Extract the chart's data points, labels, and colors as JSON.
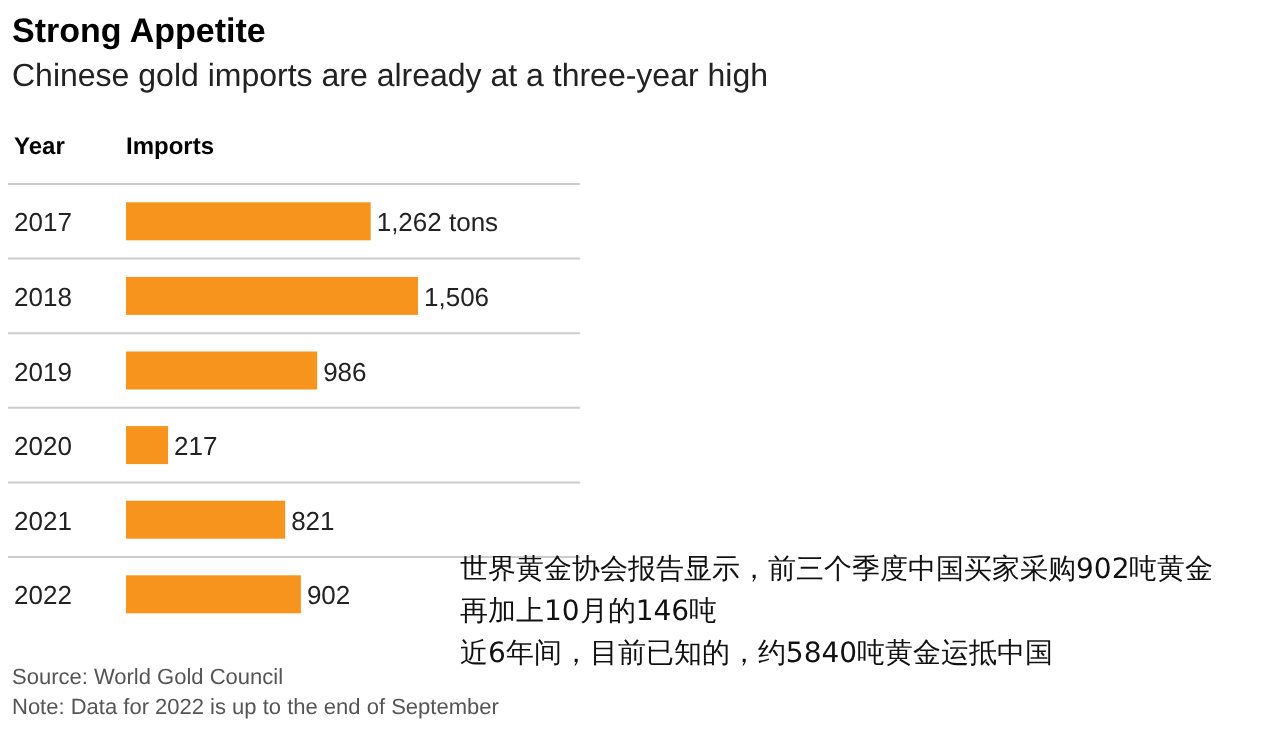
{
  "chart_data": {
    "type": "bar",
    "orientation": "horizontal",
    "title": "Strong Appetite",
    "subtitle": "Chinese gold imports are already at a three-year high",
    "ylabel": "Year",
    "xlabel": "Imports",
    "grid": "y",
    "categories": [
      "2017",
      "2018",
      "2019",
      "2020",
      "2021",
      "2022"
    ],
    "values": [
      1262,
      1506,
      986,
      217,
      821,
      902
    ],
    "value_labels": [
      "1,262 tons",
      "1,506",
      "986",
      "217",
      "821",
      "902"
    ],
    "color": "#f7941d",
    "annotations": [
      "世界黄金协会报告显示，前三个季度中国买家采购902吨黄金",
      "再加上10月的146吨",
      "近6年间，目前已知的，约5840吨黄金运抵中国",
      "Source: World Gold Council",
      "Note: Data for 2022 is up to the end of September"
    ]
  }
}
